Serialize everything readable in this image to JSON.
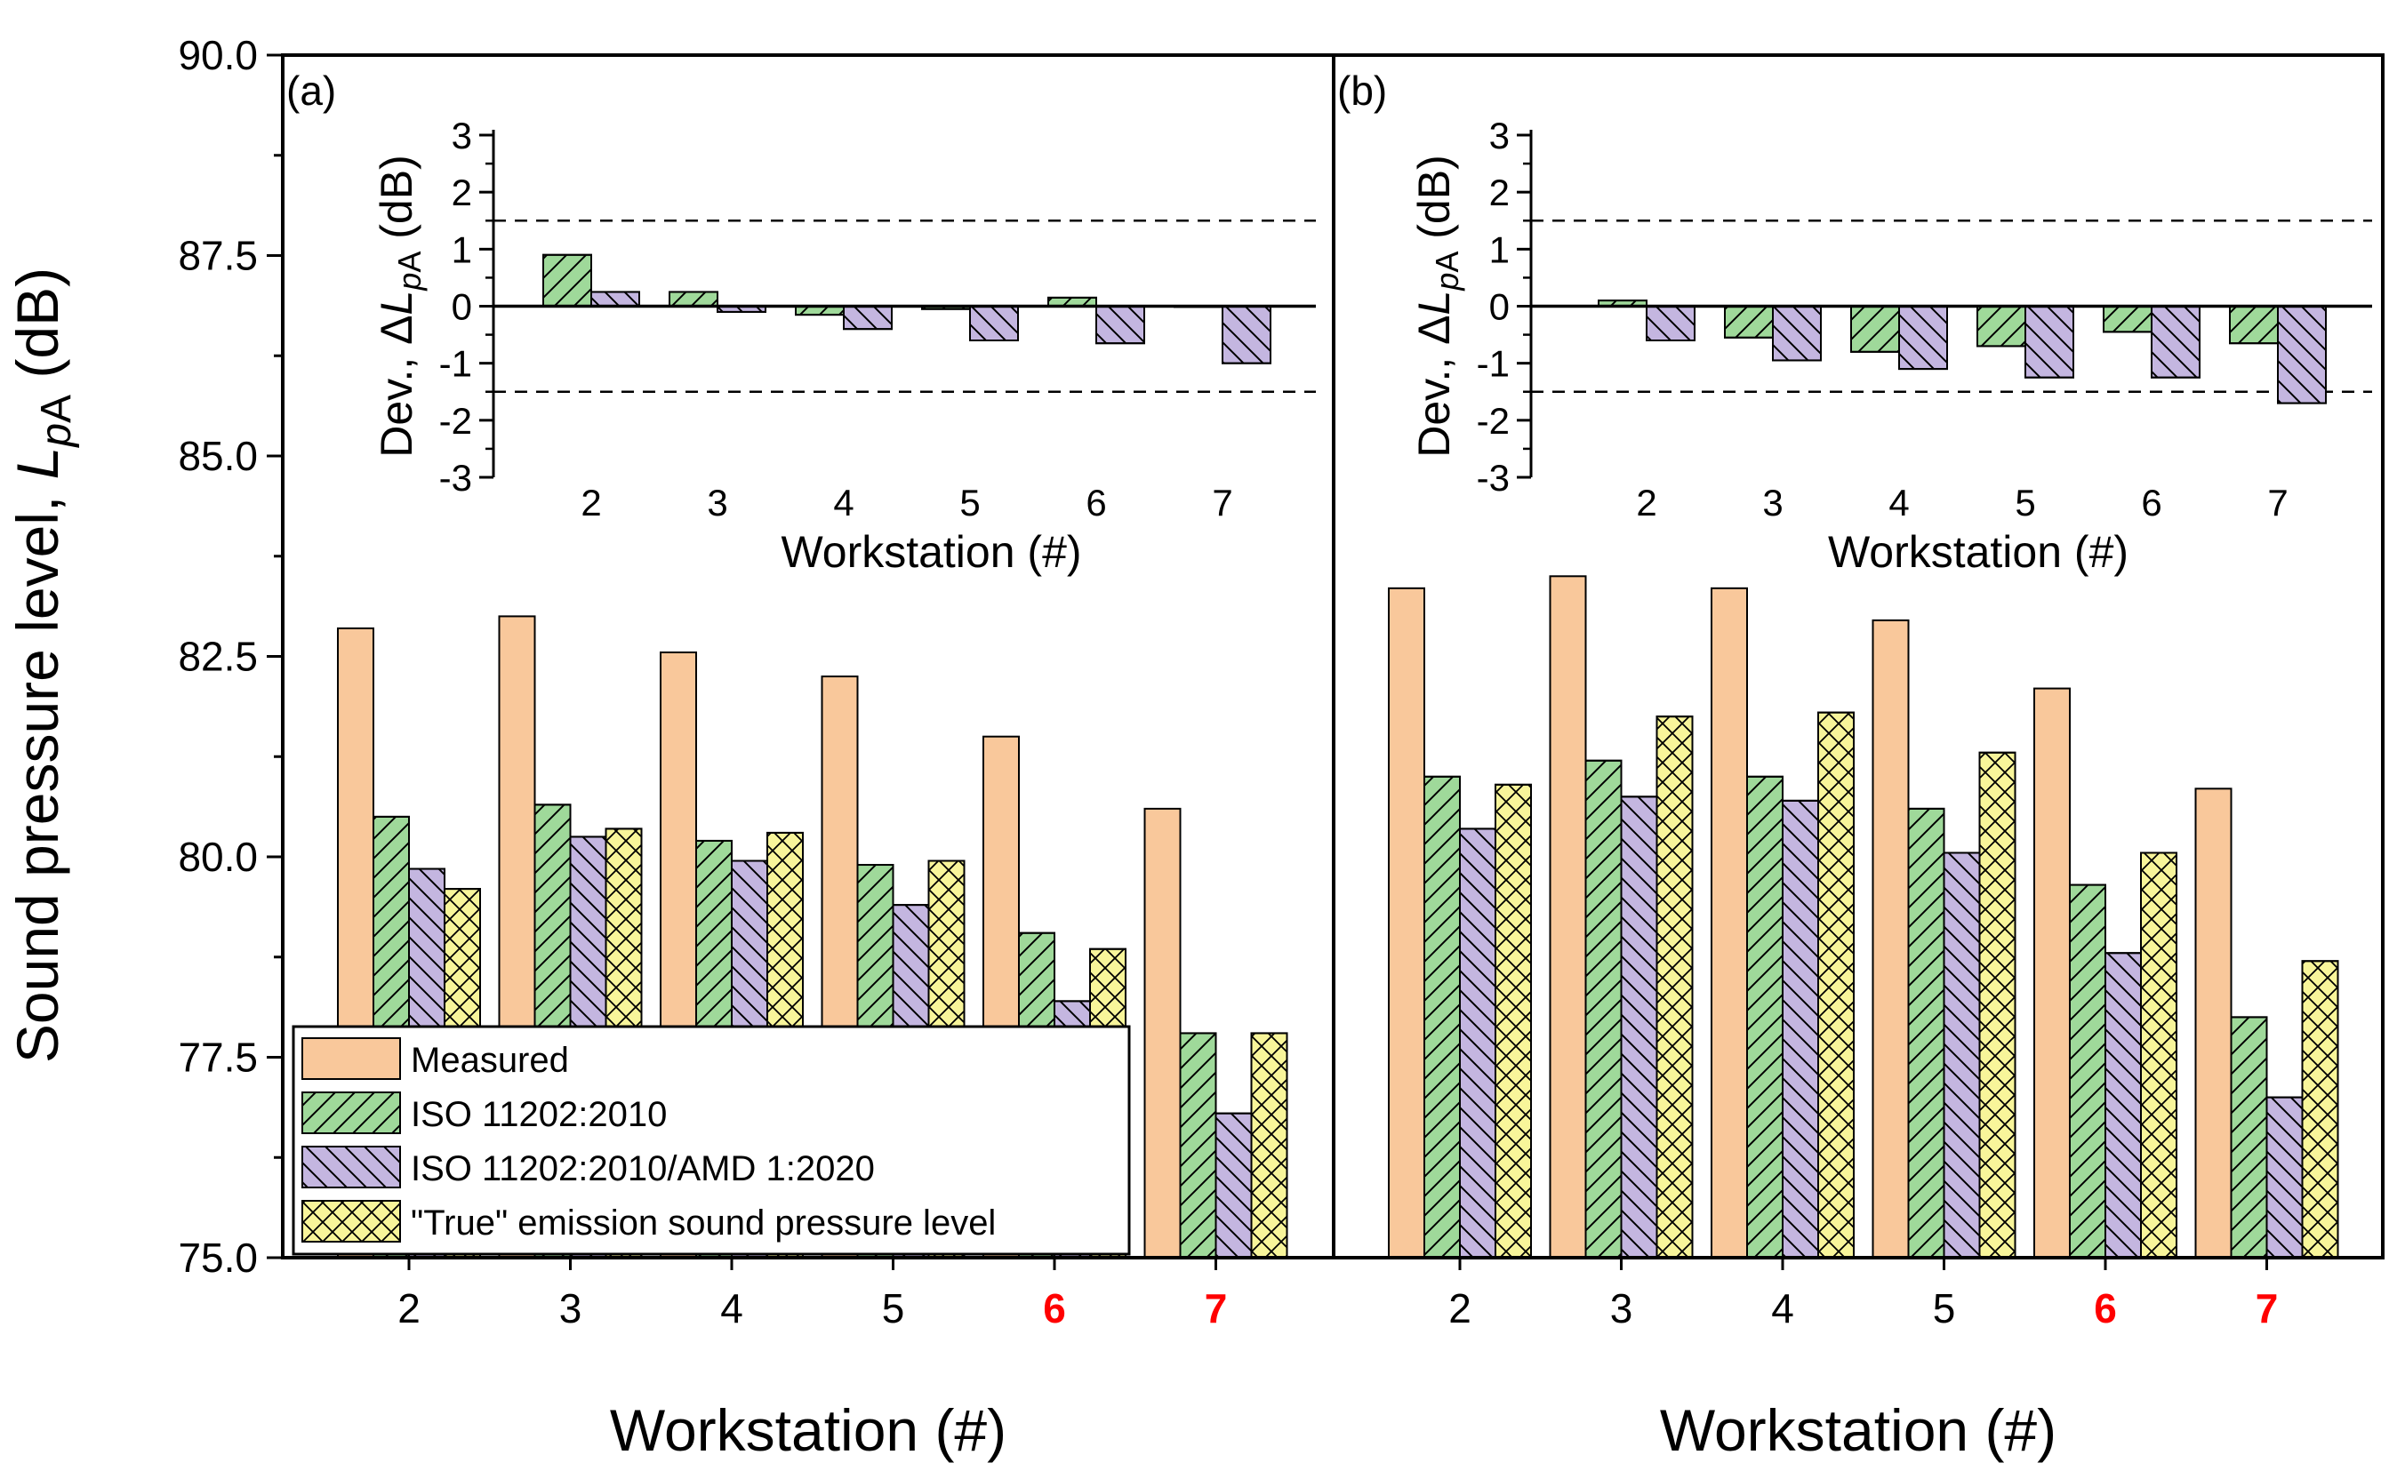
{
  "chart_data": {
    "type": "bar",
    "ylabel_main": "Sound pressure level, ",
    "ylabel_symbol": "L",
    "ylabel_sub": "pA",
    "ylabel_unit": " (dB)",
    "xlabel": "Workstation (#)",
    "ylim": [
      75.0,
      90.0
    ],
    "yticks": [
      "75.0",
      "77.5",
      "80.0",
      "82.5",
      "85.0",
      "87.5",
      "90.0"
    ],
    "categories": [
      "2",
      "3",
      "4",
      "5",
      "6",
      "7"
    ],
    "highlight_categories": [
      "6",
      "7"
    ],
    "highlight_color": "#ff0000",
    "legend": [
      {
        "name": "Measured",
        "fill": "#f9c89b",
        "pattern": "none"
      },
      {
        "name": "ISO 11202:2010",
        "fill": "#9fd99a",
        "pattern": "fwd"
      },
      {
        "name": "ISO 11202:2010/AMD 1:2020",
        "fill": "#c4b6e0",
        "pattern": "back"
      },
      {
        "name": "\"True\" emission sound pressure level",
        "fill": "#f8f59a",
        "pattern": "cross"
      }
    ],
    "panels": [
      {
        "label": "(a)",
        "series": [
          {
            "name": "Measured",
            "values": [
              82.85,
              83.0,
              82.55,
              82.25,
              81.5,
              80.6
            ]
          },
          {
            "name": "ISO 11202:2010",
            "values": [
              80.5,
              80.65,
              80.2,
              79.9,
              79.05,
              77.8
            ]
          },
          {
            "name": "ISO 11202:2010/AMD 1:2020",
            "values": [
              79.85,
              80.25,
              79.95,
              79.4,
              78.2,
              76.8
            ]
          },
          {
            "name": "\"True\" emission sound pressure level",
            "values": [
              79.6,
              80.35,
              80.3,
              79.95,
              78.85,
              77.8
            ]
          }
        ],
        "inset": {
          "ylabel_prefix": "Dev., Δ",
          "ylabel_symbol": "L",
          "ylabel_sub": "pA",
          "ylabel_unit": " (dB)",
          "xlabel": "Workstation (#)",
          "ylim": [
            -3,
            3
          ],
          "yticks": [
            "-3",
            "-2",
            "-1",
            "0",
            "1",
            "2",
            "3"
          ],
          "reference_lines": [
            1.5,
            -1.5
          ],
          "series": [
            {
              "name": "ISO 11202:2010",
              "values": [
                0.9,
                0.25,
                -0.15,
                -0.05,
                0.15,
                0.0
              ]
            },
            {
              "name": "ISO 11202:2010/AMD 1:2020",
              "values": [
                0.25,
                -0.1,
                -0.4,
                -0.6,
                -0.65,
                -1.0
              ]
            }
          ]
        }
      },
      {
        "label": "(b)",
        "series": [
          {
            "name": "Measured",
            "values": [
              83.35,
              83.5,
              83.35,
              82.95,
              82.1,
              80.85
            ]
          },
          {
            "name": "ISO 11202:2010",
            "values": [
              81.0,
              81.2,
              81.0,
              80.6,
              79.65,
              78.0
            ]
          },
          {
            "name": "ISO 11202:2010/AMD 1:2020",
            "values": [
              80.35,
              80.75,
              80.7,
              80.05,
              78.8,
              77.0
            ]
          },
          {
            "name": "\"True\" emission sound pressure level",
            "values": [
              80.9,
              81.75,
              81.8,
              81.3,
              80.05,
              78.7
            ]
          }
        ],
        "inset": {
          "ylabel_prefix": "Dev., Δ",
          "ylabel_symbol": "L",
          "ylabel_sub": "pA",
          "ylabel_unit": " (dB)",
          "xlabel": "Workstation (#)",
          "ylim": [
            -3,
            3
          ],
          "yticks": [
            "-3",
            "-2",
            "-1",
            "0",
            "1",
            "2",
            "3"
          ],
          "reference_lines": [
            1.5,
            -1.5
          ],
          "series": [
            {
              "name": "ISO 11202:2010",
              "values": [
                0.1,
                -0.55,
                -0.8,
                -0.7,
                -0.45,
                -0.65
              ]
            },
            {
              "name": "ISO 11202:2010/AMD 1:2020",
              "values": [
                -0.6,
                -0.95,
                -1.1,
                -1.25,
                -1.25,
                -1.7
              ]
            }
          ]
        }
      }
    ]
  }
}
